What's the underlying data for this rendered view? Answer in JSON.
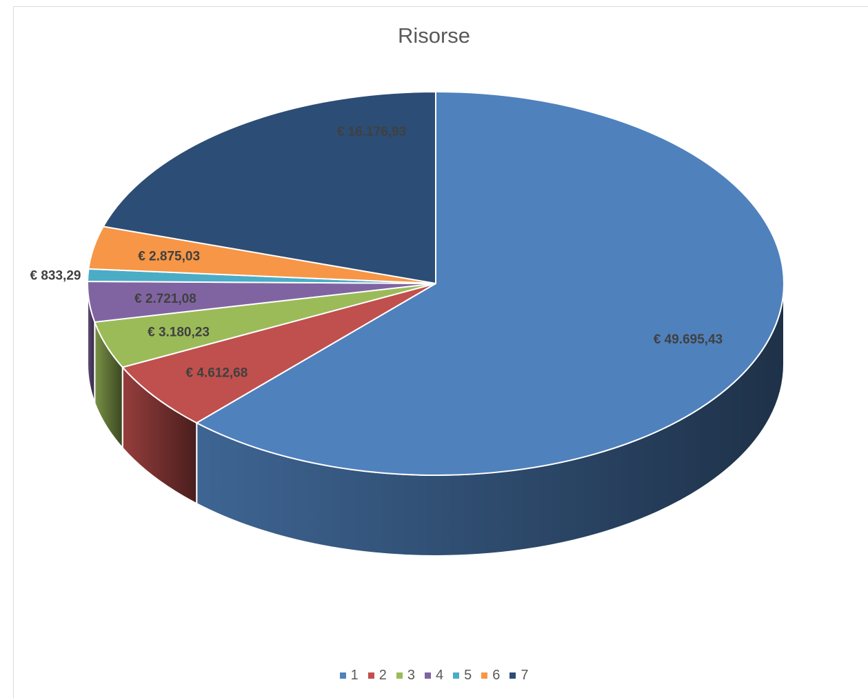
{
  "chart_data": {
    "type": "pie",
    "title": "Risorse",
    "categories": [
      "1",
      "2",
      "3",
      "4",
      "5",
      "6",
      "7"
    ],
    "values": [
      49695.43,
      4612.68,
      3180.23,
      2721.08,
      833.29,
      2875.03,
      16176.93
    ],
    "data_labels": [
      "€ 49.695,43",
      "€ 4.612,68",
      "€ 3.180,23",
      "€ 2.721,08",
      "€ 833,29",
      "€ 2.875,03",
      "€ 16.176,93"
    ],
    "colors": [
      "#4f81bd",
      "#c0504d",
      "#9bbb59",
      "#8064a2",
      "#4bacc6",
      "#f79646",
      "#2c4d75"
    ],
    "legend_position": "bottom",
    "style": "3d"
  }
}
